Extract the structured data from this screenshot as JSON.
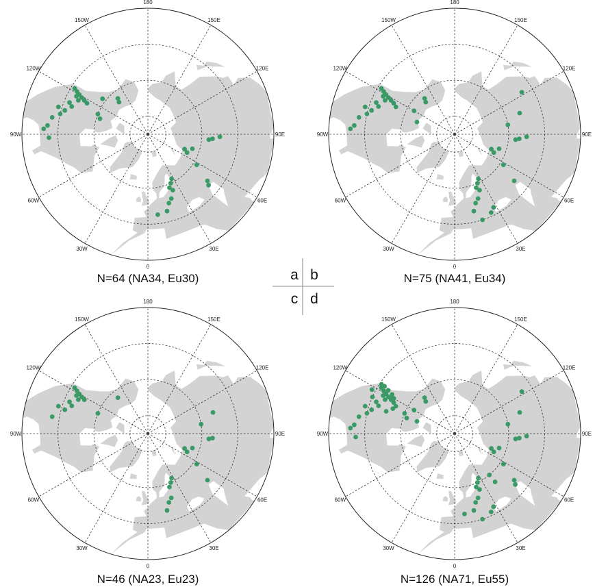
{
  "colors": {
    "land": "#d3d3d3",
    "site": "#3a9a66",
    "grid": "#333333",
    "rim": "#222222"
  },
  "longitude_labels": [
    "180",
    "150E",
    "120E",
    "90E",
    "60E",
    "30E",
    "0",
    "30W",
    "60W",
    "90W",
    "120W",
    "150W"
  ],
  "panel_letters": [
    "a",
    "b",
    "c",
    "d"
  ],
  "panels": [
    {
      "id": "a",
      "caption": "N=64  (NA34, Eu30)",
      "sites": [
        [
          42,
          -122
        ],
        [
          44,
          -121
        ],
        [
          46,
          -120
        ],
        [
          48,
          -119
        ],
        [
          45,
          -118
        ],
        [
          47,
          -116
        ],
        [
          50,
          -118
        ],
        [
          52,
          -117
        ],
        [
          43,
          -112
        ],
        [
          45,
          -110
        ],
        [
          42,
          -106
        ],
        [
          38,
          -107
        ],
        [
          40,
          -103
        ],
        [
          36,
          -100
        ],
        [
          34,
          -95
        ],
        [
          32,
          -93
        ],
        [
          35,
          -88
        ],
        [
          60,
          -112
        ],
        [
          62,
          -108
        ],
        [
          66,
          -138
        ],
        [
          64,
          -140
        ],
        [
          58,
          -128
        ],
        [
          68,
          68
        ],
        [
          66,
          65
        ],
        [
          64,
          72
        ],
        [
          58,
          58
        ],
        [
          54,
          86
        ],
        [
          56,
          85
        ],
        [
          50,
          88
        ],
        [
          48,
          52
        ],
        [
          46,
          50
        ],
        [
          62,
          28
        ],
        [
          60,
          25
        ],
        [
          58,
          22
        ],
        [
          56,
          24
        ],
        [
          52,
          20
        ],
        [
          50,
          17
        ],
        [
          46,
          14
        ],
        [
          45,
          7
        ]
      ]
    },
    {
      "id": "b",
      "caption": "N=75  (NA41, Eu34)",
      "sites": [
        [
          42,
          -122
        ],
        [
          44,
          -121
        ],
        [
          46,
          -120
        ],
        [
          48,
          -119
        ],
        [
          45,
          -118
        ],
        [
          47,
          -116
        ],
        [
          50,
          -118
        ],
        [
          52,
          -117
        ],
        [
          54,
          -115
        ],
        [
          43,
          -112
        ],
        [
          45,
          -110
        ],
        [
          42,
          -106
        ],
        [
          38,
          -107
        ],
        [
          40,
          -103
        ],
        [
          36,
          -100
        ],
        [
          34,
          -95
        ],
        [
          32,
          -93
        ],
        [
          64,
          -120
        ],
        [
          66,
          -138
        ],
        [
          64,
          -140
        ],
        [
          68,
          -108
        ],
        [
          68,
          68
        ],
        [
          66,
          65
        ],
        [
          64,
          72
        ],
        [
          58,
          58
        ],
        [
          60,
          100
        ],
        [
          54,
          86
        ],
        [
          56,
          85
        ],
        [
          50,
          88
        ],
        [
          48,
          52
        ],
        [
          52,
          108
        ],
        [
          46,
          122
        ],
        [
          62,
          28
        ],
        [
          60,
          25
        ],
        [
          58,
          22
        ],
        [
          56,
          24
        ],
        [
          52,
          20
        ],
        [
          50,
          17
        ],
        [
          46,
          14
        ],
        [
          44,
          28
        ],
        [
          42,
          25
        ],
        [
          40,
          18
        ]
      ]
    },
    {
      "id": "c",
      "caption": "N=46  (NA23, Eu23)",
      "sites": [
        [
          42,
          -122
        ],
        [
          44,
          -121
        ],
        [
          46,
          -120
        ],
        [
          48,
          -119
        ],
        [
          45,
          -118
        ],
        [
          47,
          -116
        ],
        [
          50,
          -118
        ],
        [
          43,
          -112
        ],
        [
          45,
          -110
        ],
        [
          42,
          -106
        ],
        [
          38,
          -107
        ],
        [
          36,
          -100
        ],
        [
          60,
          -112
        ],
        [
          64,
          -140
        ],
        [
          68,
          68
        ],
        [
          66,
          65
        ],
        [
          64,
          72
        ],
        [
          58,
          58
        ],
        [
          60,
          100
        ],
        [
          54,
          86
        ],
        [
          56,
          85
        ],
        [
          48,
          52
        ],
        [
          62,
          28
        ],
        [
          60,
          25
        ],
        [
          58,
          22
        ],
        [
          52,
          20
        ],
        [
          50,
          17
        ],
        [
          46,
          14
        ],
        [
          52,
          108
        ]
      ]
    },
    {
      "id": "d",
      "caption": "N=126  (NA71, Eu55)",
      "sites": [
        [
          42,
          -122
        ],
        [
          44,
          -121
        ],
        [
          46,
          -120
        ],
        [
          48,
          -119
        ],
        [
          45,
          -118
        ],
        [
          47,
          -116
        ],
        [
          50,
          -118
        ],
        [
          52,
          -117
        ],
        [
          54,
          -115
        ],
        [
          43,
          -112
        ],
        [
          45,
          -110
        ],
        [
          42,
          -106
        ],
        [
          38,
          -107
        ],
        [
          40,
          -103
        ],
        [
          36,
          -100
        ],
        [
          34,
          -95
        ],
        [
          32,
          -93
        ],
        [
          35,
          -88
        ],
        [
          41,
          -124
        ],
        [
          43,
          -124
        ],
        [
          46,
          -123
        ],
        [
          49,
          -122
        ],
        [
          51,
          -120
        ],
        [
          53,
          -112
        ],
        [
          50,
          -108
        ],
        [
          40,
          -114
        ],
        [
          38,
          -118
        ],
        [
          64,
          -120
        ],
        [
          66,
          -138
        ],
        [
          64,
          -140
        ],
        [
          68,
          -108
        ],
        [
          60,
          -112
        ],
        [
          62,
          -108
        ],
        [
          68,
          68
        ],
        [
          66,
          65
        ],
        [
          64,
          72
        ],
        [
          58,
          58
        ],
        [
          60,
          100
        ],
        [
          54,
          86
        ],
        [
          56,
          85
        ],
        [
          50,
          88
        ],
        [
          48,
          52
        ],
        [
          46,
          50
        ],
        [
          52,
          108
        ],
        [
          46,
          122
        ],
        [
          62,
          28
        ],
        [
          60,
          25
        ],
        [
          58,
          22
        ],
        [
          56,
          24
        ],
        [
          52,
          20
        ],
        [
          50,
          17
        ],
        [
          46,
          14
        ],
        [
          45,
          7
        ],
        [
          44,
          28
        ],
        [
          42,
          25
        ],
        [
          40,
          18
        ],
        [
          55,
          40
        ],
        [
          60,
          40
        ]
      ]
    }
  ]
}
